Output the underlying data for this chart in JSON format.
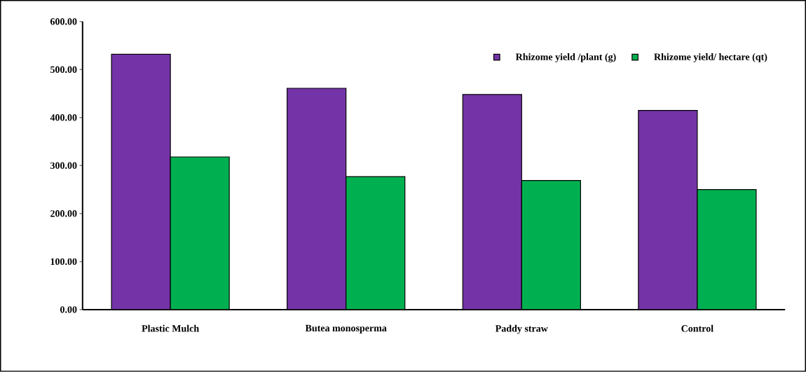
{
  "chart_data": {
    "type": "bar",
    "categories": [
      "Plastic Mulch",
      "Butea monosperma",
      "Paddy straw",
      "Control"
    ],
    "series": [
      {
        "name": "Rhizome yield /plant (g)",
        "color": "#7434a8",
        "values": [
          532,
          461,
          448,
          415
        ]
      },
      {
        "name": "Rhizome yield/ hectare (qt)",
        "color": "#00b050",
        "values": [
          318,
          277,
          269,
          250
        ]
      }
    ],
    "ylim": [
      0,
      600
    ],
    "yticks": [
      {
        "value": 0,
        "label": "0.00"
      },
      {
        "value": 100,
        "label": "100.00"
      },
      {
        "value": 200,
        "label": "200.00"
      },
      {
        "value": 300,
        "label": "300.00"
      },
      {
        "value": 400,
        "label": "400.00"
      },
      {
        "value": 500,
        "label": "500.00"
      },
      {
        "value": 600,
        "label": "600.00"
      }
    ],
    "legend": "top right",
    "grid": false
  }
}
